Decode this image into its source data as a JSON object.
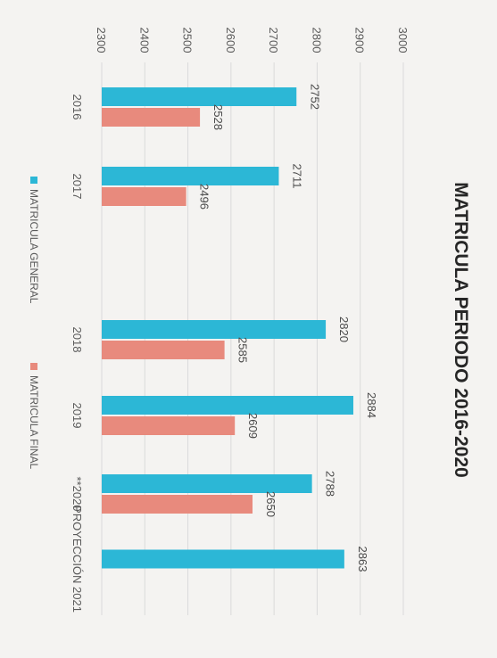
{
  "chart_data": {
    "type": "bar",
    "title": "MATRICULA PERIODO 2016-2020",
    "categories": [
      "2016",
      "2017",
      "2018",
      "2019",
      "**2020",
      "PROYECCIÓN 2021"
    ],
    "series": [
      {
        "name": "MATRICULA GENERAL",
        "color": "#2cb7d6",
        "values": [
          2752,
          2711,
          2820,
          2884,
          2788,
          2863
        ]
      },
      {
        "name": "MATRICULA FINAL",
        "color": "#e88a7d",
        "values": [
          2528,
          2496,
          2585,
          2609,
          2650,
          null
        ]
      }
    ],
    "ylim": [
      2300,
      3000
    ],
    "yticks": [
      2300,
      2400,
      2500,
      2600,
      2700,
      2800,
      2900,
      3000
    ],
    "grid": true,
    "legend": "bottom",
    "orientation": "rotated 90° clockwise (value axis runs left-to-right)"
  }
}
